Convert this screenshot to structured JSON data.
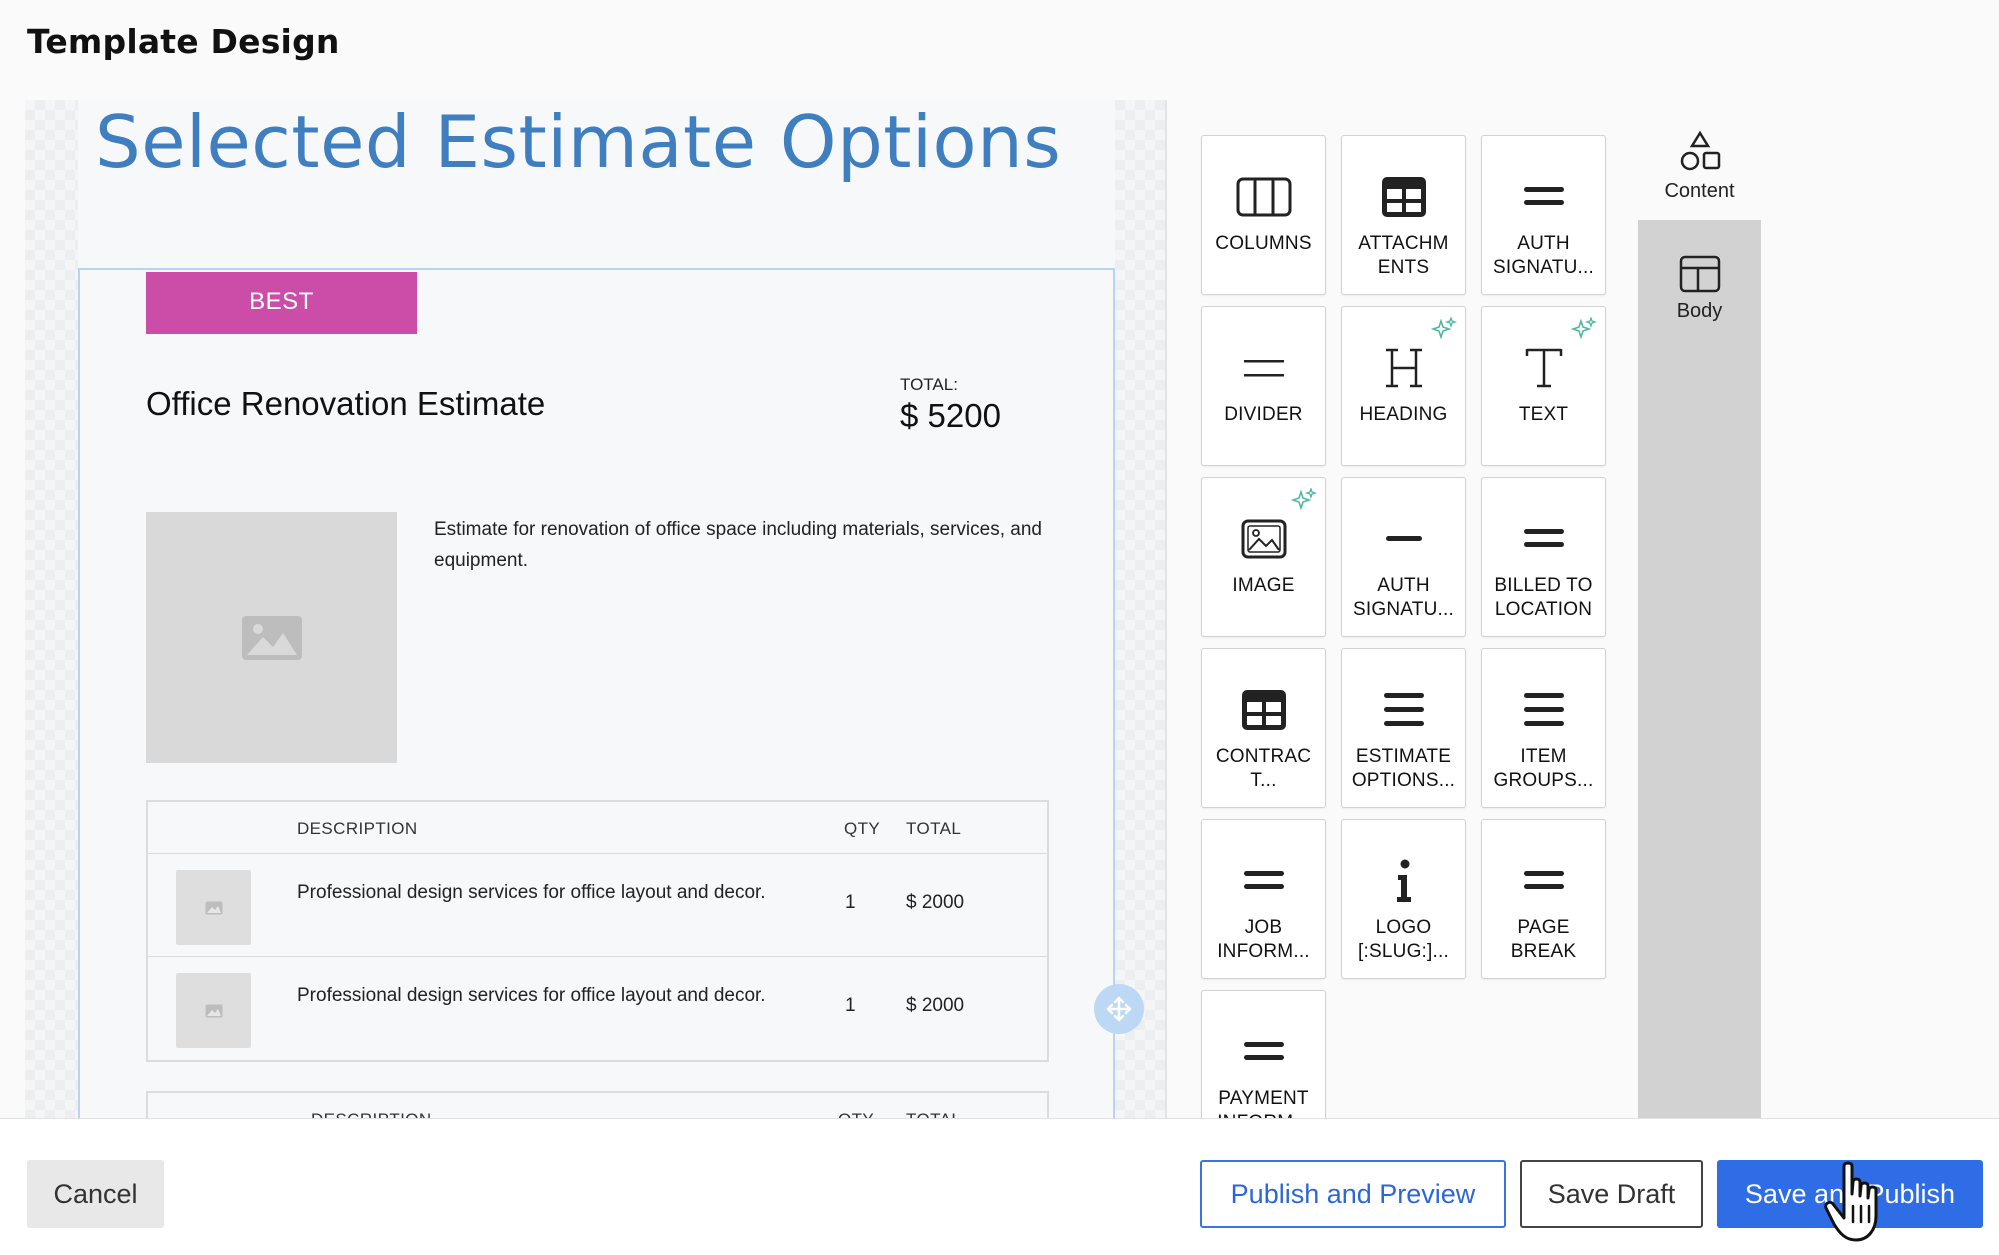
{
  "page_title": "Template Design",
  "document": {
    "heading": "Selected Estimate Options",
    "option": {
      "tag": "BEST",
      "title": "Office Renovation Estimate",
      "total_label": "TOTAL:",
      "total_value": "$ 5200",
      "description": "Estimate for renovation of office space including materials, services, and equipment."
    },
    "tables": [
      {
        "headers": {
          "description": "DESCRIPTION",
          "qty": "QTY",
          "total": "TOTAL"
        },
        "rows": [
          {
            "description": "Professional design services for office layout and decor.",
            "qty": "1",
            "total": "$ 2000"
          },
          {
            "description": "Professional design services for office layout and decor.",
            "qty": "1",
            "total": "$ 2000"
          }
        ]
      },
      {
        "headers": {
          "description": "DESCRIPTION",
          "qty": "QTY",
          "total": "TOTAL"
        },
        "rows": []
      }
    ]
  },
  "palette": {
    "blocks": [
      {
        "label": "COLUMNS",
        "icon": "columns-icon"
      },
      {
        "label": "ATTACHM ENTS",
        "icon": "table-grid-icon"
      },
      {
        "label": "AUTH SIGNATU...",
        "icon": "equals-icon"
      },
      {
        "label": "DIVIDER",
        "icon": "divider-icon"
      },
      {
        "label": "HEADING",
        "icon": "heading-icon",
        "ai": true
      },
      {
        "label": "TEXT",
        "icon": "text-icon",
        "ai": true
      },
      {
        "label": "IMAGE",
        "icon": "image-icon",
        "ai": true
      },
      {
        "label": "AUTH SIGNATU...",
        "icon": "minus-icon"
      },
      {
        "label": "BILLED TO LOCATION",
        "icon": "equals-icon"
      },
      {
        "label": "CONTRAC T...",
        "icon": "table-grid-icon"
      },
      {
        "label": "ESTIMATE OPTIONS...",
        "icon": "menu-icon"
      },
      {
        "label": "ITEM GROUPS...",
        "icon": "menu-icon"
      },
      {
        "label": "JOB INFORM...",
        "icon": "equals-icon"
      },
      {
        "label": "LOGO [:SLUG:]...",
        "icon": "info-icon"
      },
      {
        "label": "PAGE BREAK",
        "icon": "equals-icon"
      },
      {
        "label": "PAYMENT INFORM...",
        "icon": "equals-icon"
      }
    ]
  },
  "tabs": {
    "content": "Content",
    "body": "Body"
  },
  "footer": {
    "cancel": "Cancel",
    "publish_preview": "Publish and Preview",
    "save_draft": "Save Draft",
    "save_publish": "Save and Publish"
  },
  "colors": {
    "accent": "#2f6de6",
    "heading": "#3f7fbf",
    "best_tag": "#cc4da7",
    "selection": "#b7d4f2"
  }
}
